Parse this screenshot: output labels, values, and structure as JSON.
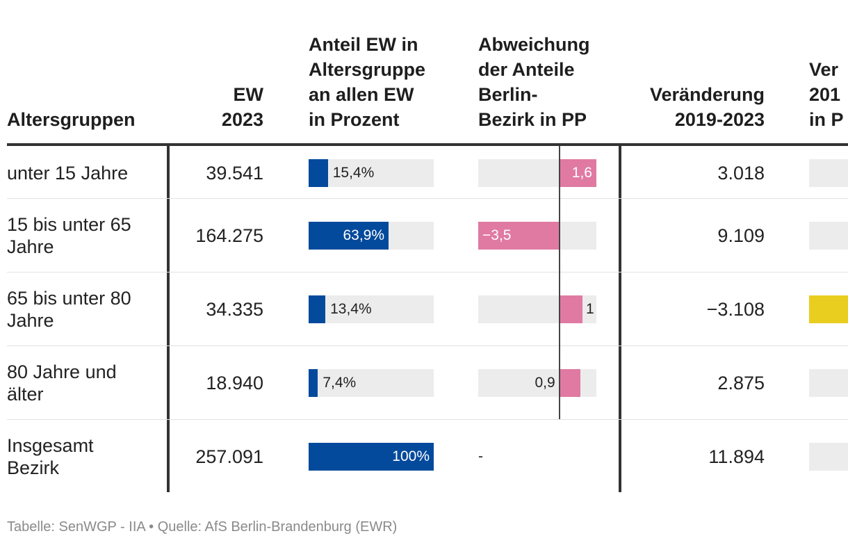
{
  "table": {
    "headers": {
      "age": [
        "Altersgruppen"
      ],
      "ew": [
        "EW",
        "2023"
      ],
      "share": [
        "Anteil EW in",
        "Altersgruppe",
        "an allen EW",
        "in Prozent"
      ],
      "deviation": [
        "Abweichung",
        "der Anteile",
        "Berlin-",
        "Bezirk in PP"
      ],
      "change": [
        "Veränderung",
        "2019-2023"
      ],
      "change_pct": [
        "Ver",
        "201",
        "in P"
      ]
    },
    "colors": {
      "share_bar": "#044a9c",
      "deviation_bar": "#e07aa3",
      "bar_background": "#ececec",
      "change_pct_highlight": "#e9cd1f",
      "rule": "#333333"
    }
  },
  "chart_data": {
    "type": "table",
    "columns": [
      "Altersgruppen",
      "EW 2023",
      "Anteil EW in Altersgruppe an allen EW in Prozent",
      "Abweichung der Anteile Berlin-Bezirk in PP",
      "Veränderung 2019-2023"
    ],
    "rows": [
      {
        "age_lines": [
          "unter 15 Jahre"
        ],
        "ew": "39.541",
        "share": 15.4,
        "share_label": "15,4%",
        "deviation": 1.6,
        "deviation_label": "1,6",
        "change": "3.018",
        "change_pct_color": "#ececec"
      },
      {
        "age_lines": [
          "15 bis unter 65",
          "Jahre"
        ],
        "ew": "164.275",
        "share": 63.9,
        "share_label": "63,9%",
        "deviation": -3.5,
        "deviation_label": "−3,5",
        "change": "9.109",
        "change_pct_color": "#ececec"
      },
      {
        "age_lines": [
          "65 bis unter 80",
          "Jahre"
        ],
        "ew": "34.335",
        "share": 13.4,
        "share_label": "13,4%",
        "deviation": 1.0,
        "deviation_label": "1",
        "change": "−3.108",
        "change_pct_color": "#e9cd1f"
      },
      {
        "age_lines": [
          "80 Jahre und",
          "älter"
        ],
        "ew": "18.940",
        "share": 7.4,
        "share_label": "7,4%",
        "deviation": 0.9,
        "deviation_label": "0,9",
        "change": "2.875",
        "change_pct_color": "#ececec"
      },
      {
        "age_lines": [
          "Insgesamt",
          "Bezirk"
        ],
        "ew": "257.091",
        "share": 100,
        "share_label": "100%",
        "deviation": null,
        "deviation_label": "-",
        "change": "11.894",
        "change_pct_color": "#ececec"
      }
    ],
    "share_scale": [
      0,
      100
    ],
    "deviation_scale": [
      -3.5,
      1.6
    ]
  },
  "footer": {
    "source": "Tabelle: SenWGP - IIA • Quelle: AfS Berlin-Brandenburg (EWR)"
  }
}
